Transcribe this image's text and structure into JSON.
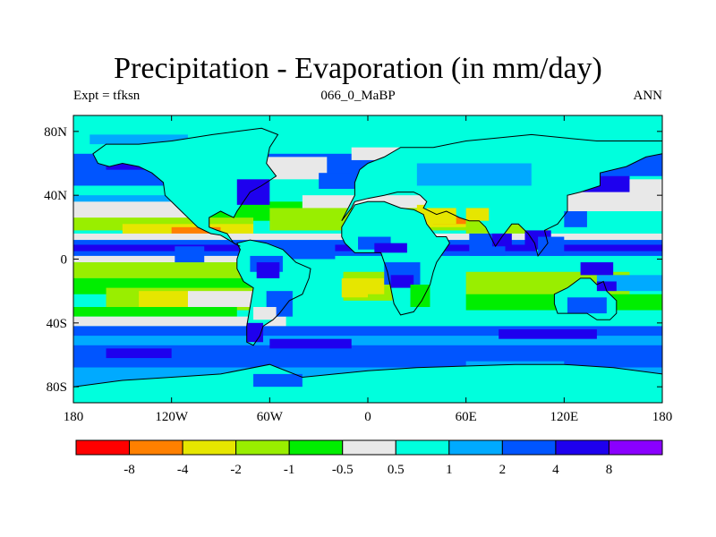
{
  "title": "Precipitation - Evaporation (in mm/day)",
  "subtitle_left": "Expt = tfksn",
  "subtitle_center": "066_0_MaBP",
  "subtitle_right": "ANN",
  "map": {
    "projection": "cylindrical equidistant",
    "lon_range": [
      -180,
      180
    ],
    "lat_range": [
      -90,
      90
    ],
    "lon_ticks": [
      {
        "value": -180,
        "label": "180"
      },
      {
        "value": -120,
        "label": "120W"
      },
      {
        "value": -60,
        "label": "60W"
      },
      {
        "value": 0,
        "label": "0"
      },
      {
        "value": 60,
        "label": "60E"
      },
      {
        "value": 120,
        "label": "120E"
      },
      {
        "value": 180,
        "label": "180"
      }
    ],
    "lat_ticks": [
      {
        "value": 80,
        "label": "80N"
      },
      {
        "value": 40,
        "label": "40N"
      },
      {
        "value": 0,
        "label": "0"
      },
      {
        "value": -40,
        "label": "40S"
      },
      {
        "value": -80,
        "label": "80S"
      }
    ],
    "background_class": 6,
    "regions": [
      {
        "c": 6,
        "lon": -180,
        "lat": 82,
        "w": 360,
        "h": 8
      },
      {
        "c": 8,
        "lon": -180,
        "lat": 66,
        "w": 360,
        "h": 14
      },
      {
        "c": 7,
        "lon": -170,
        "lat": 78,
        "w": 60,
        "h": 6
      },
      {
        "c": 8,
        "lon": -180,
        "lat": 58,
        "w": 75,
        "h": 12
      },
      {
        "c": 9,
        "lon": -160,
        "lat": 62,
        "w": 30,
        "h": 6
      },
      {
        "c": 7,
        "lon": -180,
        "lat": 40,
        "w": 70,
        "h": 8
      },
      {
        "c": 8,
        "lon": -105,
        "lat": 44,
        "w": 35,
        "h": 16
      },
      {
        "c": 9,
        "lon": -100,
        "lat": 50,
        "w": 15,
        "h": 20
      },
      {
        "c": 5,
        "lon": -75,
        "lat": 64,
        "w": 50,
        "h": 14
      },
      {
        "c": 5,
        "lon": -10,
        "lat": 70,
        "w": 60,
        "h": 8
      },
      {
        "c": 8,
        "lon": -30,
        "lat": 54,
        "w": 60,
        "h": 10
      },
      {
        "c": 5,
        "lon": 30,
        "lat": 60,
        "w": 100,
        "h": 8
      },
      {
        "c": 8,
        "lon": 80,
        "lat": 66,
        "w": 40,
        "h": 8
      },
      {
        "c": 5,
        "lon": -180,
        "lat": 36,
        "w": 80,
        "h": 12
      },
      {
        "c": 4,
        "lon": -100,
        "lat": 36,
        "w": 60,
        "h": 12
      },
      {
        "c": 5,
        "lon": -40,
        "lat": 40,
        "w": 100,
        "h": 10
      },
      {
        "c": 5,
        "lon": 100,
        "lat": 50,
        "w": 80,
        "h": 20
      },
      {
        "c": 8,
        "lon": 120,
        "lat": 60,
        "w": 40,
        "h": 10
      },
      {
        "c": 9,
        "lon": 130,
        "lat": 52,
        "w": 30,
        "h": 10
      },
      {
        "c": 7,
        "lon": 60,
        "lat": 52,
        "w": 40,
        "h": 14
      },
      {
        "c": 3,
        "lon": -180,
        "lat": 26,
        "w": 110,
        "h": 8
      },
      {
        "c": 2,
        "lon": -150,
        "lat": 22,
        "w": 80,
        "h": 6
      },
      {
        "c": 1,
        "lon": -120,
        "lat": 20,
        "w": 30,
        "h": 4
      },
      {
        "c": 3,
        "lon": -60,
        "lat": 32,
        "w": 140,
        "h": 14
      },
      {
        "c": 2,
        "lon": 30,
        "lat": 34,
        "w": 30,
        "h": 14
      },
      {
        "c": 1,
        "lon": 40,
        "lat": 30,
        "w": 20,
        "h": 8
      },
      {
        "c": 3,
        "lon": 60,
        "lat": 26,
        "w": 50,
        "h": 10
      },
      {
        "c": 5,
        "lon": -180,
        "lat": 16,
        "w": 360,
        "h": 4
      },
      {
        "c": 8,
        "lon": -180,
        "lat": 12,
        "w": 360,
        "h": 10
      },
      {
        "c": 9,
        "lon": -180,
        "lat": 9,
        "w": 360,
        "h": 4
      },
      {
        "c": 8,
        "lon": -60,
        "lat": 10,
        "w": 40,
        "h": 10
      },
      {
        "c": 5,
        "lon": -180,
        "lat": 2,
        "w": 110,
        "h": 4
      },
      {
        "c": 3,
        "lon": -180,
        "lat": -2,
        "w": 130,
        "h": 10
      },
      {
        "c": 4,
        "lon": -180,
        "lat": -12,
        "w": 130,
        "h": 10
      },
      {
        "c": 3,
        "lon": -160,
        "lat": -18,
        "w": 100,
        "h": 14
      },
      {
        "c": 2,
        "lon": -140,
        "lat": -20,
        "w": 30,
        "h": 10
      },
      {
        "c": 3,
        "lon": -15,
        "lat": -8,
        "w": 30,
        "h": 18
      },
      {
        "c": 2,
        "lon": -10,
        "lat": -12,
        "w": 20,
        "h": 10
      },
      {
        "c": 3,
        "lon": 60,
        "lat": -8,
        "w": 100,
        "h": 16
      },
      {
        "c": 4,
        "lon": 60,
        "lat": -22,
        "w": 120,
        "h": 10
      },
      {
        "c": 4,
        "lon": -180,
        "lat": -30,
        "w": 100,
        "h": 6
      },
      {
        "c": 5,
        "lon": -180,
        "lat": -36,
        "w": 130,
        "h": 6
      },
      {
        "c": 8,
        "lon": -180,
        "lat": -42,
        "w": 360,
        "h": 26
      },
      {
        "c": 7,
        "lon": -180,
        "lat": -48,
        "w": 360,
        "h": 6
      },
      {
        "c": 9,
        "lon": -160,
        "lat": -56,
        "w": 40,
        "h": 6
      },
      {
        "c": 9,
        "lon": -60,
        "lat": -50,
        "w": 50,
        "h": 6
      },
      {
        "c": 9,
        "lon": 80,
        "lat": -44,
        "w": 60,
        "h": 6
      },
      {
        "c": 7,
        "lon": -180,
        "lat": -68,
        "w": 360,
        "h": 12
      },
      {
        "c": 6,
        "lon": -180,
        "lat": -80,
        "w": 360,
        "h": 12
      },
      {
        "c": 7,
        "lon": 60,
        "lat": -64,
        "w": 60,
        "h": 12
      },
      {
        "c": 5,
        "lon": -110,
        "lat": -20,
        "w": 60,
        "h": 10
      },
      {
        "c": 7,
        "lon": 140,
        "lat": -10,
        "w": 40,
        "h": 10
      },
      {
        "c": 9,
        "lon": 130,
        "lat": -2,
        "w": 20,
        "h": 8
      }
    ],
    "continents": [
      {
        "name": "north-america",
        "fill_class": 6,
        "points": [
          [
            -168,
            66
          ],
          [
            -160,
            72
          ],
          [
            -140,
            72
          ],
          [
            -120,
            74
          ],
          [
            -95,
            78
          ],
          [
            -80,
            80
          ],
          [
            -65,
            82
          ],
          [
            -55,
            78
          ],
          [
            -60,
            70
          ],
          [
            -62,
            60
          ],
          [
            -56,
            52
          ],
          [
            -65,
            46
          ],
          [
            -72,
            42
          ],
          [
            -76,
            36
          ],
          [
            -80,
            30
          ],
          [
            -82,
            26
          ],
          [
            -90,
            30
          ],
          [
            -97,
            26
          ],
          [
            -97,
            20
          ],
          [
            -92,
            18
          ],
          [
            -86,
            16
          ],
          [
            -82,
            10
          ],
          [
            -78,
            8
          ],
          [
            -80,
            9
          ],
          [
            -85,
            12
          ],
          [
            -90,
            15
          ],
          [
            -96,
            16
          ],
          [
            -104,
            20
          ],
          [
            -108,
            24
          ],
          [
            -114,
            30
          ],
          [
            -118,
            34
          ],
          [
            -124,
            40
          ],
          [
            -125,
            48
          ],
          [
            -132,
            54
          ],
          [
            -140,
            58
          ],
          [
            -150,
            60
          ],
          [
            -158,
            58
          ],
          [
            -165,
            60
          ]
        ]
      },
      {
        "name": "south-america",
        "fill_class": 6,
        "points": [
          [
            -80,
            10
          ],
          [
            -72,
            12
          ],
          [
            -62,
            10
          ],
          [
            -52,
            6
          ],
          [
            -44,
            -2
          ],
          [
            -35,
            -6
          ],
          [
            -36,
            -12
          ],
          [
            -40,
            -22
          ],
          [
            -48,
            -26
          ],
          [
            -54,
            -34
          ],
          [
            -58,
            -38
          ],
          [
            -64,
            -42
          ],
          [
            -66,
            -48
          ],
          [
            -70,
            -54
          ],
          [
            -74,
            -52
          ],
          [
            -74,
            -42
          ],
          [
            -72,
            -30
          ],
          [
            -70,
            -18
          ],
          [
            -76,
            -14
          ],
          [
            -80,
            -6
          ],
          [
            -80,
            0
          ],
          [
            -78,
            6
          ]
        ]
      },
      {
        "name": "africa-eurasia",
        "fill_class": 6,
        "points": [
          [
            -16,
            24
          ],
          [
            -10,
            32
          ],
          [
            -8,
            36
          ],
          [
            0,
            38
          ],
          [
            10,
            40
          ],
          [
            18,
            42
          ],
          [
            28,
            42
          ],
          [
            32,
            40
          ],
          [
            36,
            36
          ],
          [
            34,
            32
          ],
          [
            42,
            28
          ],
          [
            48,
            30
          ],
          [
            56,
            26
          ],
          [
            62,
            24
          ],
          [
            68,
            24
          ],
          [
            72,
            20
          ],
          [
            78,
            8
          ],
          [
            82,
            14
          ],
          [
            88,
            22
          ],
          [
            92,
            22
          ],
          [
            98,
            16
          ],
          [
            102,
            10
          ],
          [
            104,
            2
          ],
          [
            110,
            10
          ],
          [
            108,
            18
          ],
          [
            116,
            22
          ],
          [
            122,
            30
          ],
          [
            122,
            40
          ],
          [
            130,
            42
          ],
          [
            142,
            46
          ],
          [
            142,
            54
          ],
          [
            158,
            58
          ],
          [
            170,
            64
          ],
          [
            180,
            66
          ],
          [
            180,
            74
          ],
          [
            160,
            74
          ],
          [
            140,
            74
          ],
          [
            120,
            76
          ],
          [
            100,
            78
          ],
          [
            80,
            76
          ],
          [
            60,
            74
          ],
          [
            40,
            70
          ],
          [
            20,
            70
          ],
          [
            10,
            64
          ],
          [
            0,
            60
          ],
          [
            -5,
            56
          ],
          [
            -8,
            48
          ],
          [
            -8,
            40
          ],
          [
            -10,
            36
          ]
        ],
        "inner": [
          [
            -16,
            20
          ],
          [
            -16,
            14
          ],
          [
            -14,
            10
          ],
          [
            -8,
            4
          ],
          [
            0,
            4
          ],
          [
            8,
            4
          ],
          [
            10,
            -2
          ],
          [
            12,
            -8
          ],
          [
            14,
            -18
          ],
          [
            16,
            -28
          ],
          [
            20,
            -35
          ],
          [
            28,
            -33
          ],
          [
            33,
            -26
          ],
          [
            38,
            -16
          ],
          [
            40,
            -8
          ],
          [
            42,
            -2
          ],
          [
            50,
            10
          ],
          [
            48,
            14
          ],
          [
            42,
            14
          ],
          [
            36,
            22
          ],
          [
            34,
            28
          ],
          [
            28,
            31
          ],
          [
            20,
            32
          ],
          [
            10,
            36
          ],
          [
            0,
            36
          ],
          [
            -8,
            34
          ]
        ]
      },
      {
        "name": "australia",
        "fill_class": 6,
        "points": [
          [
            114,
            -22
          ],
          [
            122,
            -18
          ],
          [
            130,
            -12
          ],
          [
            136,
            -12
          ],
          [
            140,
            -16
          ],
          [
            144,
            -14
          ],
          [
            146,
            -20
          ],
          [
            152,
            -26
          ],
          [
            152,
            -34
          ],
          [
            148,
            -38
          ],
          [
            140,
            -38
          ],
          [
            134,
            -34
          ],
          [
            124,
            -34
          ],
          [
            116,
            -34
          ],
          [
            114,
            -28
          ]
        ]
      },
      {
        "name": "antarctica",
        "fill_class": 6,
        "points": [
          [
            -180,
            -80
          ],
          [
            -150,
            -76
          ],
          [
            -120,
            -74
          ],
          [
            -90,
            -72
          ],
          [
            -60,
            -66
          ],
          [
            -40,
            -74
          ],
          [
            -20,
            -72
          ],
          [
            0,
            -70
          ],
          [
            30,
            -68
          ],
          [
            60,
            -67
          ],
          [
            90,
            -66
          ],
          [
            120,
            -66
          ],
          [
            150,
            -68
          ],
          [
            180,
            -72
          ],
          [
            180,
            -90
          ],
          [
            -180,
            -90
          ]
        ]
      }
    ],
    "land_overlays": [
      {
        "c": 8,
        "lon": -118,
        "lat": 8,
        "w": 18,
        "h": 10
      },
      {
        "c": 9,
        "lon": -80,
        "lat": 50,
        "w": 20,
        "h": 16
      },
      {
        "c": 8,
        "lon": -72,
        "lat": 2,
        "w": 20,
        "h": 10
      },
      {
        "c": 9,
        "lon": -68,
        "lat": -2,
        "w": 14,
        "h": 10
      },
      {
        "c": 8,
        "lon": -62,
        "lat": -20,
        "w": 16,
        "h": 16
      },
      {
        "c": 5,
        "lon": -70,
        "lat": -30,
        "w": 14,
        "h": 8
      },
      {
        "c": 9,
        "lon": -74,
        "lat": -40,
        "w": 10,
        "h": 12
      },
      {
        "c": 8,
        "lon": -6,
        "lat": 14,
        "w": 20,
        "h": 8
      },
      {
        "c": 9,
        "lon": 4,
        "lat": 10,
        "w": 20,
        "h": 6
      },
      {
        "c": 8,
        "lon": 10,
        "lat": -2,
        "w": 22,
        "h": 14
      },
      {
        "c": 9,
        "lon": 14,
        "lat": -10,
        "w": 14,
        "h": 8
      },
      {
        "c": 2,
        "lon": -16,
        "lat": -12,
        "w": 16,
        "h": 12
      },
      {
        "c": 4,
        "lon": 26,
        "lat": -16,
        "w": 12,
        "h": 14
      },
      {
        "c": 8,
        "lon": 62,
        "lat": 16,
        "w": 22,
        "h": 14
      },
      {
        "c": 9,
        "lon": 76,
        "lat": 16,
        "w": 12,
        "h": 8
      },
      {
        "c": 2,
        "lon": 36,
        "lat": 32,
        "w": 18,
        "h": 10
      },
      {
        "c": 2,
        "lon": 60,
        "lat": 32,
        "w": 14,
        "h": 8
      },
      {
        "c": 9,
        "lon": 96,
        "lat": 18,
        "w": 16,
        "h": 12
      },
      {
        "c": 8,
        "lon": 104,
        "lat": 14,
        "w": 16,
        "h": 12
      },
      {
        "c": 7,
        "lon": 30,
        "lat": 60,
        "w": 70,
        "h": 14
      },
      {
        "c": 8,
        "lon": 120,
        "lat": 30,
        "w": 14,
        "h": 10
      },
      {
        "c": 8,
        "lon": 122,
        "lat": -24,
        "w": 24,
        "h": 10
      },
      {
        "c": 9,
        "lon": 140,
        "lat": -14,
        "w": 12,
        "h": 6
      },
      {
        "c": 8,
        "lon": -70,
        "lat": -72,
        "w": 30,
        "h": 8
      }
    ]
  },
  "colorbar": {
    "colors": [
      "#ff0000",
      "#ff8000",
      "#e6e600",
      "#99ee00",
      "#00ee00",
      "#e8e8e8",
      "#00ffdd",
      "#00aaff",
      "#0055ff",
      "#1e00ee",
      "#8a00ff"
    ],
    "labels": [
      "-8",
      "-4",
      "-2",
      "-1",
      "-0.5",
      "0.5",
      "1",
      "2",
      "4",
      "8"
    ]
  }
}
